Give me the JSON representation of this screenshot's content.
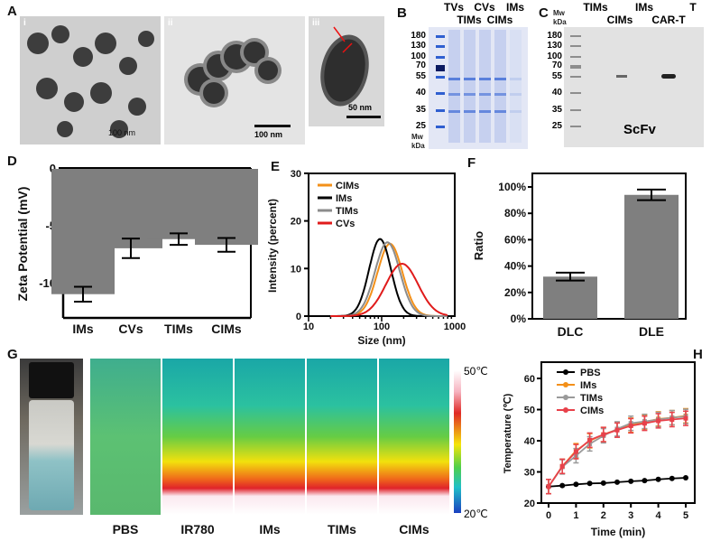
{
  "panels": {
    "A": "A",
    "B": "B",
    "C": "C",
    "D": "D",
    "E": "E",
    "F": "F",
    "G": "G",
    "H": "H"
  },
  "panel_a": {
    "sub": [
      "i",
      "ii",
      "iii"
    ],
    "scale_i": "100 nm",
    "scale_ii": "100 nm",
    "scale_iii": "50 nm"
  },
  "panel_b": {
    "lanes": [
      "TVs",
      "TIMs",
      "CVs",
      "CIMs",
      "IMs"
    ],
    "markers": [
      "180",
      "130",
      "100",
      "70",
      "55",
      "40",
      "35",
      "25"
    ],
    "mw": "Mw",
    "kda": "kDa",
    "colors": {
      "gel": "#dfe4f4",
      "band": "#2f5fd0"
    }
  },
  "panel_c": {
    "lanes": [
      "TIMs",
      "CIMs",
      "IMs",
      "CAR-T",
      "T"
    ],
    "markers": [
      "180",
      "130",
      "100",
      "70",
      "55",
      "40",
      "35",
      "25"
    ],
    "mw": "Mw",
    "kda": "kDa",
    "label": "ScFv"
  },
  "panel_g": {
    "labels": [
      "PBS",
      "IR780",
      "IMs",
      "TIMs",
      "CIMs"
    ],
    "scale_max": "50℃",
    "scale_min": "20℃"
  },
  "chart_data": [
    {
      "panel": "D",
      "type": "bar",
      "categories": [
        "IMs",
        "CVs",
        "TIMs",
        "CIMs"
      ],
      "values": [
        -11.0,
        -7.0,
        -6.2,
        -6.7
      ],
      "errors": [
        0.65,
        0.85,
        0.5,
        0.6
      ],
      "ylabel": "Zeta Potential (mV)",
      "xlabel": "",
      "ylim": [
        -13,
        0
      ],
      "yticks": [
        0,
        -5,
        -10
      ],
      "color": "#7f7f7f"
    },
    {
      "panel": "E",
      "type": "line",
      "xlabel": "Size (nm)",
      "ylabel": "Intensity (percent)",
      "xscale": "log",
      "xlim": [
        10,
        1000
      ],
      "ylim": [
        0,
        30
      ],
      "xticks": [
        "10",
        "100",
        "1000"
      ],
      "yticks": [
        0,
        10,
        20,
        30
      ],
      "legend": "top-left",
      "series": [
        {
          "name": "CIMs",
          "color": "#f39019",
          "peak_x": 130,
          "peak_y": 15.2,
          "width": 0.17
        },
        {
          "name": "IMs",
          "color": "#000000",
          "peak_x": 95,
          "peak_y": 16.2,
          "width": 0.15
        },
        {
          "name": "TIMs",
          "color": "#8c8c8c",
          "peak_x": 120,
          "peak_y": 15.5,
          "width": 0.17
        },
        {
          "name": "CVs",
          "color": "#e01b1b",
          "peak_x": 190,
          "peak_y": 11.0,
          "width": 0.22
        }
      ]
    },
    {
      "panel": "F",
      "type": "bar",
      "categories": [
        "DLC",
        "DLE"
      ],
      "values": [
        32,
        94
      ],
      "errors": [
        3,
        4
      ],
      "ylabel": "Ratio",
      "ylim": [
        0,
        110
      ],
      "yticks": [
        "0%",
        "20%",
        "40%",
        "60%",
        "80%",
        "100%"
      ],
      "color": "#7f7f7f"
    },
    {
      "panel": "H",
      "type": "line",
      "xlabel": "Time (min)",
      "ylabel": "Temperature (℃)",
      "xlim": [
        0,
        5
      ],
      "ylim": [
        20,
        65
      ],
      "xticks": [
        0,
        1,
        2,
        3,
        4,
        5
      ],
      "yticks": [
        20,
        30,
        40,
        50,
        60
      ],
      "legend": "top-left",
      "x": [
        0,
        0.5,
        1,
        1.5,
        2,
        2.5,
        3,
        3.5,
        4,
        4.5,
        5
      ],
      "series": [
        {
          "name": "PBS",
          "color": "#000000",
          "marker": "circle",
          "values": [
            25.3,
            25.6,
            26.0,
            26.3,
            26.4,
            26.7,
            27.0,
            27.2,
            27.6,
            27.9,
            28.1
          ],
          "error": 0.3
        },
        {
          "name": "IMs",
          "color": "#f39019",
          "marker": "square",
          "values": [
            25.3,
            31.8,
            36.8,
            40.0,
            42.0,
            43.6,
            45.0,
            46.0,
            47.0,
            47.4,
            48.0
          ],
          "error": 2.3
        },
        {
          "name": "TIMs",
          "color": "#9a9a9a",
          "marker": "triangle-down",
          "values": [
            25.3,
            31.6,
            35.2,
            39.0,
            41.6,
            43.8,
            45.6,
            46.2,
            46.8,
            47.4,
            47.8
          ],
          "error": 2.3
        },
        {
          "name": "CIMs",
          "color": "#e8414a",
          "marker": "triangle-up",
          "values": [
            25.3,
            31.8,
            36.5,
            40.2,
            42.0,
            43.4,
            44.8,
            45.6,
            46.4,
            46.8,
            47.2
          ],
          "error": 2.3
        }
      ]
    }
  ]
}
